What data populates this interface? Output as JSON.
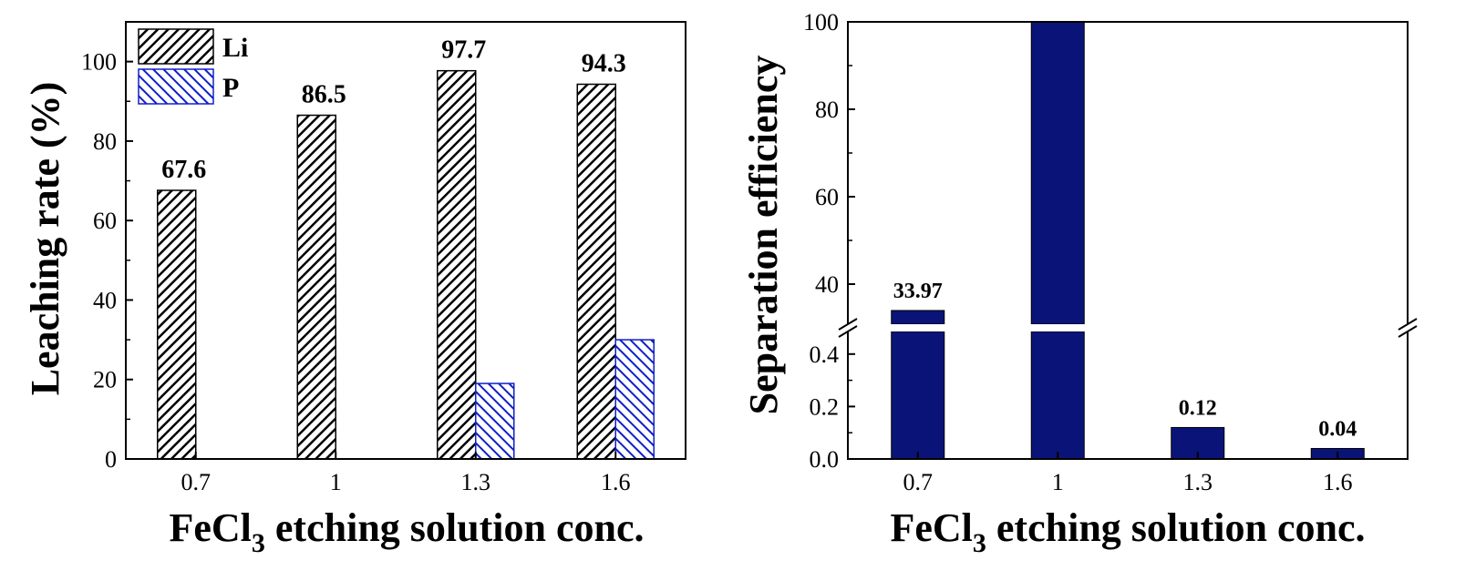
{
  "colors": {
    "li_stroke": "#000000",
    "p_stroke": "#1020c8",
    "sep_fill": "#0a1478"
  },
  "chart_data": [
    {
      "type": "bar",
      "categories": [
        "0.7",
        "1",
        "1.3",
        "1.6"
      ],
      "series": [
        {
          "name": "Li",
          "values": [
            67.6,
            86.5,
            97.7,
            94.3
          ],
          "labels": [
            "67.6",
            "86.5",
            "97.7",
            "94.3"
          ]
        },
        {
          "name": "P",
          "values": [
            0,
            0,
            19,
            30
          ]
        }
      ],
      "xlabel_main": "FeCl",
      "xlabel_sub": "3",
      "xlabel_rest": " etching solution conc.",
      "ylabel": "Leaching rate (%)",
      "ylim": [
        0,
        110
      ],
      "yticks": [
        "0",
        "20",
        "40",
        "60",
        "80",
        "100"
      ],
      "legend": {
        "position": "top-left",
        "entries": [
          "Li",
          "P"
        ]
      }
    },
    {
      "type": "bar",
      "categories": [
        "0.7",
        "1",
        "1.3",
        "1.6"
      ],
      "series": [
        {
          "name": "Separation efficiency",
          "values": [
            33.97,
            100,
            0.12,
            0.04
          ],
          "labels": [
            "33.97",
            "",
            "0.12",
            "0.04"
          ]
        }
      ],
      "xlabel_main": "FeCl",
      "xlabel_sub": "3",
      "xlabel_rest": " etching solution conc.",
      "ylabel": "Separation efficiency",
      "axis_break": {
        "lower": [
          0,
          0.5
        ],
        "upper": [
          30,
          100
        ]
      },
      "yticks_lower": [
        "0.0",
        "0.2",
        "0.4"
      ],
      "yticks_upper": [
        "40",
        "60",
        "80",
        "100"
      ]
    }
  ]
}
